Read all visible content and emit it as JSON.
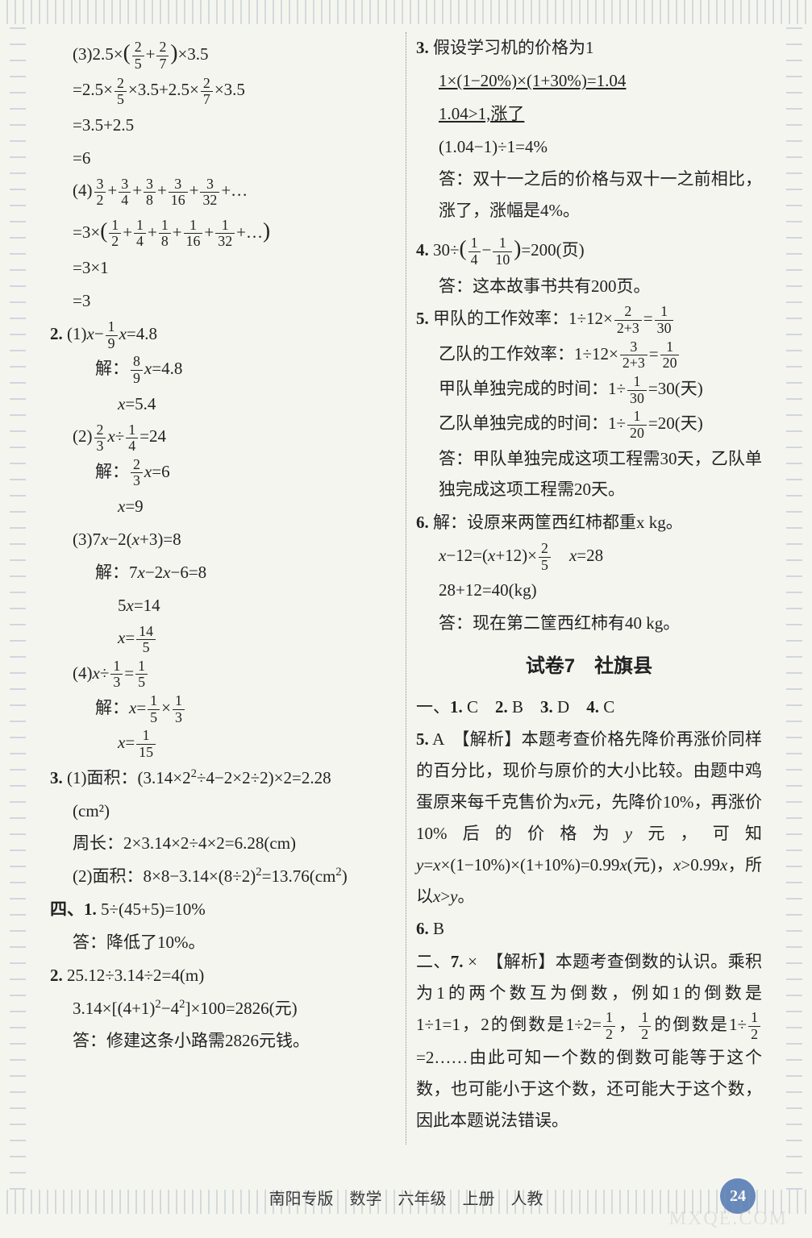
{
  "left": {
    "l1": "(3)2.5×(2/5 + 2/7)×3.5",
    "l2": "=2.5×2/5×3.5+2.5×2/7×3.5",
    "l3": "=3.5+2.5",
    "l4": "=6",
    "l5": "(4)3/2 + 3/4 + 3/8 + 3/16 + 3/32 + …",
    "l6": "=3×(1/2 + 1/4 + 1/8 + 1/16 + 1/32 + …)",
    "l7": "=3×1",
    "l8": "=3",
    "q2": "2.",
    "l9": "(1)x − 1/9 x = 4.8",
    "l10": "解：8/9 x = 4.8",
    "l11": "x = 5.4",
    "l12": "(2)2/3 x ÷ 1/4 = 24",
    "l13": "解：2/3 x = 6",
    "l14": "x = 9",
    "l15": "(3)7x − 2(x+3) = 8",
    "l16": "解：7x − 2x − 6 = 8",
    "l17": "5x = 14",
    "l18": "x = 14/5",
    "l19": "(4)x ÷ 1/3 = 1/5",
    "l20": "解：x = 1/5 × 1/3",
    "l21": "x = 1/15",
    "q3": "3.",
    "l22": "(1)面积：(3.14×2²÷4−2×2÷2)×2=2.28",
    "l23": "(cm²)",
    "l24": "周长：2×3.14×2÷4×2=6.28(cm)",
    "l25": "(2)面积：8×8−3.14×(8÷2)²=13.76(cm²)",
    "q4": "四、1.",
    "l26": "5÷(45+5)=10%",
    "l27": "答：降低了10%。",
    "q4_2": "2.",
    "l28": "25.12÷3.14÷2=4(m)",
    "l29": "3.14×[(4+1)²−4²]×100=2826(元)",
    "l30": "答：修建这条小路需2826元钱。"
  },
  "right": {
    "q3": "3.",
    "r1": "假设学习机的价格为1",
    "r2": "1×(1−20%)×(1+30%)=1.04",
    "r3": "1.04>1,涨了",
    "r4": "(1.04−1)÷1=4%",
    "r5": "答：双十一之后的价格与双十一之前相比，涨了，涨幅是4%。",
    "q4": "4.",
    "r6": "30÷(1/4 − 1/10)=200(页)",
    "r7": "答：这本故事书共有200页。",
    "q5": "5.",
    "r8": "甲队的工作效率：1÷12×2/(2+3)=1/30",
    "r9": "乙队的工作效率：1÷12×3/(2+3)=1/20",
    "r10": "甲队单独完成的时间：1÷1/30=30(天)",
    "r11": "乙队单独完成的时间：1÷1/20=20(天)",
    "r12": "答：甲队单独完成这项工程需30天，乙队单独完成这项工程需20天。",
    "q6": "6.",
    "r13": "解：设原来两筐西红柿都重x kg。",
    "r14": "x−12=(x+12)×2/5　x=28",
    "r15": "28+12=40(kg)",
    "r16": "答：现在第二筐西红柿有40 kg。",
    "title": "试卷7　社旗县",
    "r17": "一、1. C　2. B　3. D　4. C",
    "r18": "5. A　【解析】本题考查价格先降价再涨价同样的百分比，现价与原价的大小比较。由题中鸡蛋原来每千克售价为x元，先降价10%，再涨价10%后的价格为y元，可知y=x×(1−10%)×(1+10%)=0.99x(元)，x>0.99x，所以x>y。",
    "r19": "6. B",
    "r20": "二、7. ×　【解析】本题考查倒数的认识。乘积为1的两个数互为倒数，例如1的倒数是1÷1=1，2的倒数是1÷2=1/2，1/2的倒数是1÷1/2=2……由此可知一个数的倒数可能等于这个数，也可能小于这个数，还可能大于这个数，因此本题说法错误。"
  },
  "footer": "南阳专版　数学　六年级　上册　人教",
  "page_num": "24",
  "watermark": "MXQE.COM",
  "colors": {
    "text": "#222222",
    "border": "#888888",
    "accent": "#6688bb",
    "bg": "#f5f5f0"
  }
}
